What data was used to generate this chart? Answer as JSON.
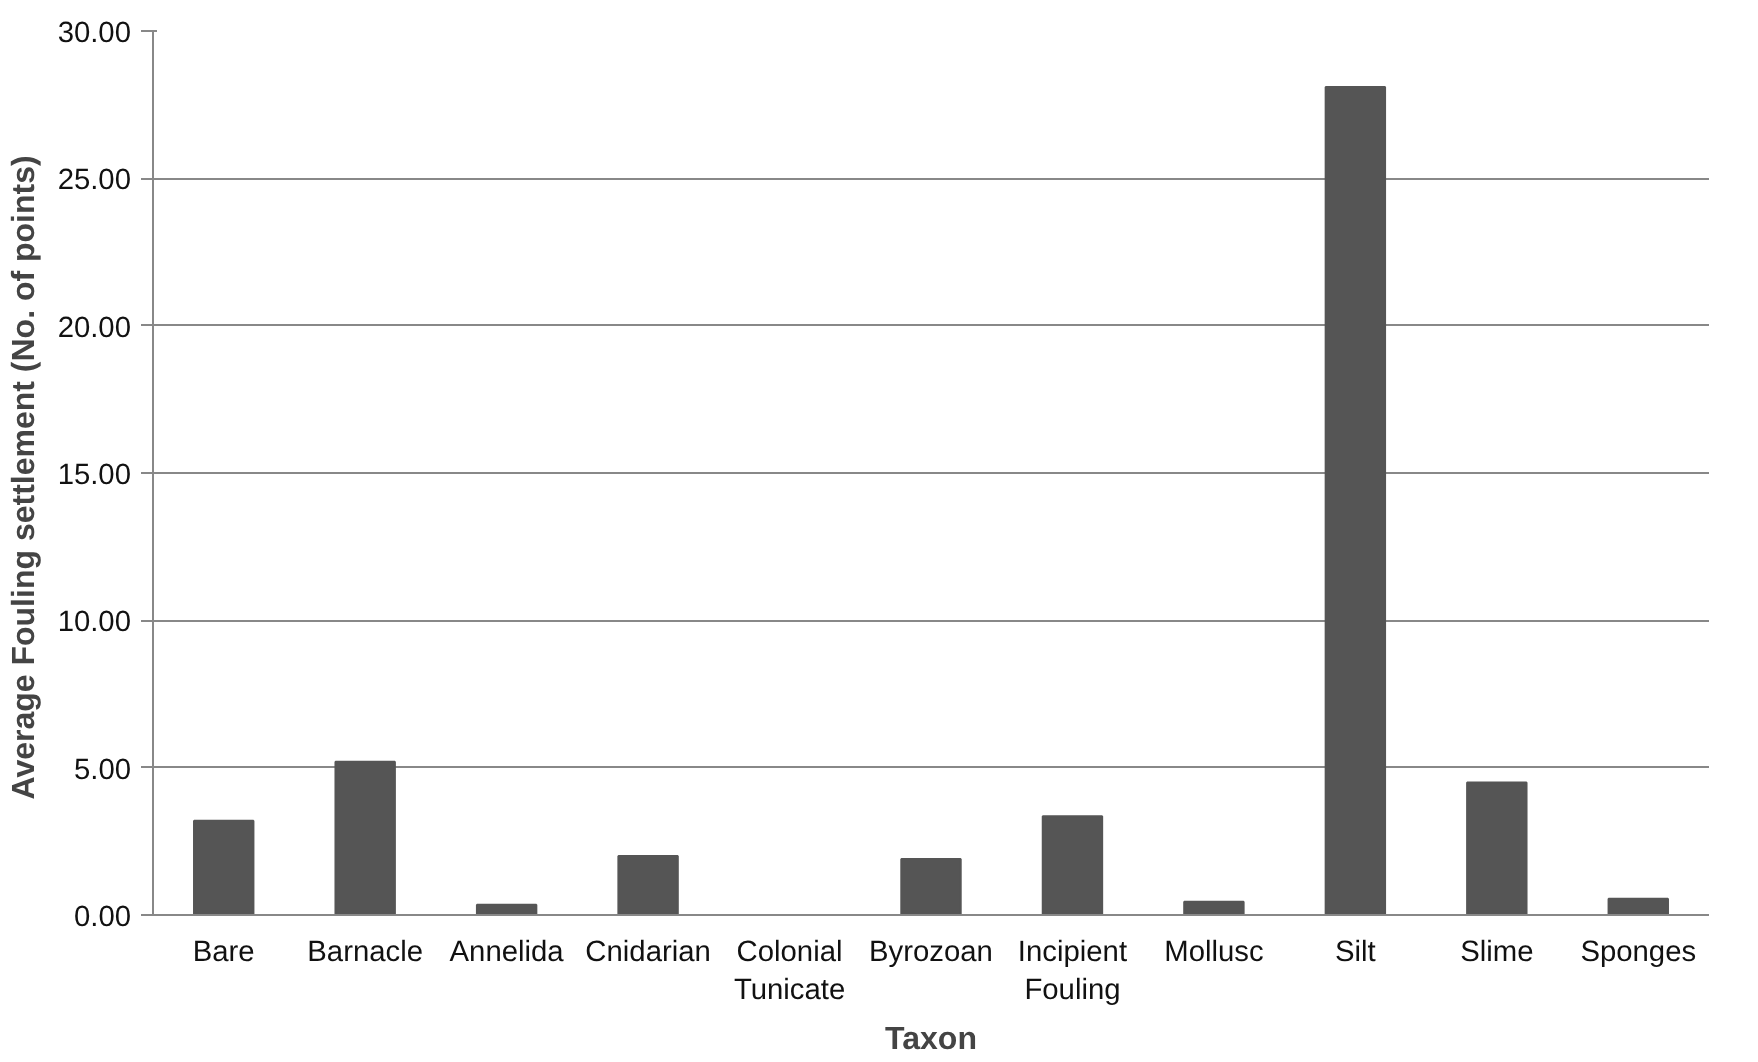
{
  "chart_data": {
    "type": "bar",
    "xlabel": "Taxon",
    "ylabel": "Average Fouling settlement  (No. of points)",
    "categories": [
      "Bare",
      "Barnacle",
      "Annelida",
      "Cnidarian",
      "Colonial\nTunicate",
      "Byrozoan",
      "Incipient\nFouling",
      "Mollusc",
      "Silt",
      "Slime",
      "Sponges"
    ],
    "values": [
      3.2,
      5.2,
      0.35,
      2.0,
      0,
      1.9,
      3.35,
      0.45,
      28.1,
      4.5,
      0.55
    ],
    "color": "#555555",
    "ylim": [
      0,
      30
    ],
    "yticks": [
      {
        "value": 0,
        "label": "0.00"
      },
      {
        "value": 5,
        "label": "5.00"
      },
      {
        "value": 10,
        "label": "10.00"
      },
      {
        "value": 15,
        "label": "15.00"
      },
      {
        "value": 20,
        "label": "20.00"
      },
      {
        "value": 25,
        "label": "25.00"
      },
      {
        "value": 30,
        "label": "30.00"
      }
    ],
    "grid": "y"
  }
}
